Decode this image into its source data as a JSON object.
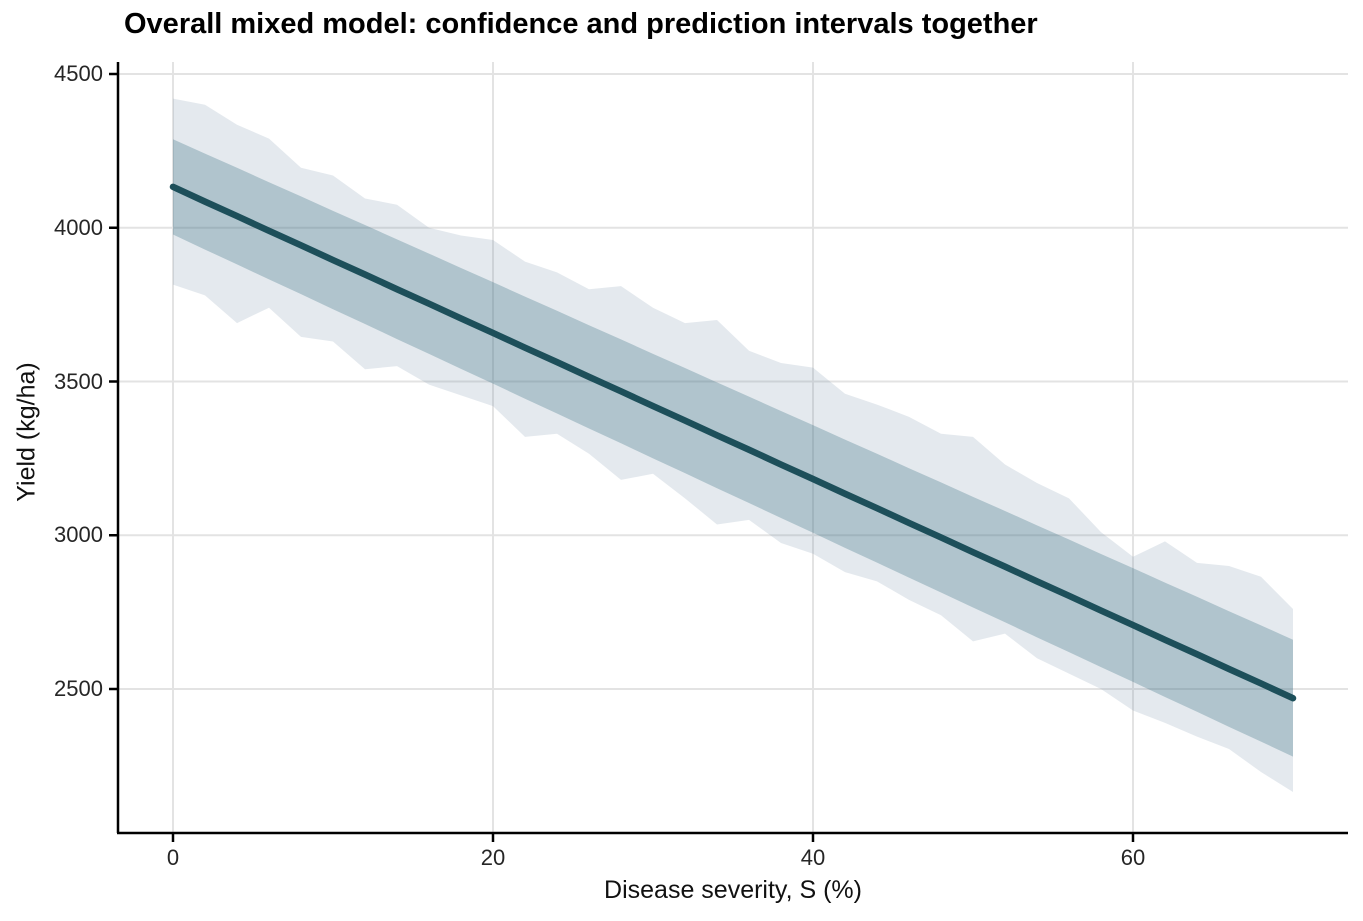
{
  "title": "Overall mixed model: confidence and prediction intervals together",
  "colors": {
    "fit_line": "#1d4f5a",
    "confidence_ribbon": "rgba(55,112,128,0.30)",
    "prediction_ribbon": "rgba(105,133,161,0.18)",
    "gridline": "#e3e3e3",
    "axis_line": "#000000",
    "tick_text": "#262626"
  },
  "chart_data": {
    "type": "line",
    "title": "Overall mixed model: confidence and prediction intervals together",
    "xlabel": "Disease severity, S (%)",
    "ylabel": "Yield (kg/ha)",
    "xlim": [
      -3.5,
      73.5
    ],
    "ylim": [
      2030,
      4540
    ],
    "xticks": [
      0,
      20,
      40,
      60
    ],
    "yticks": [
      2500,
      3000,
      3500,
      4000,
      4500
    ],
    "grid": true,
    "legend_position": "none",
    "x": [
      0,
      2,
      4,
      6,
      8,
      10,
      12,
      14,
      16,
      18,
      20,
      22,
      24,
      26,
      28,
      30,
      32,
      34,
      36,
      38,
      40,
      42,
      44,
      46,
      48,
      50,
      52,
      54,
      56,
      58,
      60,
      62,
      64,
      66,
      68,
      70
    ],
    "series": [
      {
        "name": "prediction-interval",
        "type": "ribbon",
        "upper": [
          4420,
          4400,
          4335,
          4290,
          4195,
          4170,
          4095,
          4075,
          4000,
          3975,
          3960,
          3890,
          3855,
          3800,
          3810,
          3740,
          3690,
          3700,
          3600,
          3560,
          3545,
          3460,
          3425,
          3385,
          3330,
          3320,
          3230,
          3170,
          3120,
          3010,
          2930,
          2980,
          2910,
          2900,
          2865,
          2760
        ],
        "lower": [
          3815,
          3780,
          3690,
          3740,
          3645,
          3630,
          3540,
          3550,
          3490,
          3455,
          3420,
          3320,
          3330,
          3265,
          3180,
          3200,
          3120,
          3035,
          3050,
          2975,
          2940,
          2880,
          2850,
          2790,
          2740,
          2655,
          2680,
          2600,
          2550,
          2500,
          2430,
          2390,
          2345,
          2305,
          2230,
          2165
        ]
      },
      {
        "name": "confidence-interval",
        "type": "ribbon",
        "upper": [
          4288,
          4241,
          4195,
          4148,
          4102,
          4055,
          4009,
          3962,
          3916,
          3869,
          3823,
          3776,
          3730,
          3683,
          3637,
          3590,
          3544,
          3497,
          3451,
          3404,
          3358,
          3311,
          3265,
          3218,
          3172,
          3125,
          3079,
          3032,
          2986,
          2939,
          2893,
          2846,
          2800,
          2753,
          2707,
          2660
        ],
        "lower": [
          3978,
          3929,
          3881,
          3832,
          3784,
          3735,
          3687,
          3638,
          3590,
          3541,
          3493,
          3444,
          3396,
          3347,
          3299,
          3250,
          3202,
          3153,
          3105,
          3056,
          3008,
          2959,
          2911,
          2862,
          2814,
          2765,
          2717,
          2668,
          2620,
          2571,
          2523,
          2474,
          2426,
          2377,
          2329,
          2280
        ]
      },
      {
        "name": "fitted-line",
        "type": "line",
        "values": [
          4133,
          4085,
          4038,
          3990,
          3943,
          3895,
          3848,
          3800,
          3753,
          3705,
          3658,
          3610,
          3563,
          3515,
          3468,
          3420,
          3373,
          3325,
          3278,
          3230,
          3183,
          3135,
          3088,
          3040,
          2993,
          2945,
          2898,
          2850,
          2803,
          2755,
          2708,
          2660,
          2613,
          2565,
          2518,
          2470
        ]
      }
    ]
  }
}
